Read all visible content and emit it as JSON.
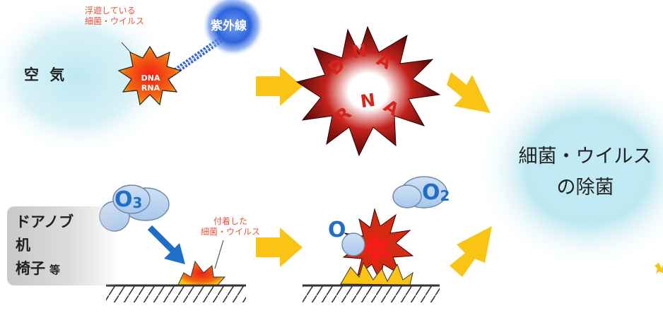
{
  "air": {
    "label": "空 気"
  },
  "floating_bacteria": {
    "line1": "浮遊している",
    "line2": "細菌・ウイルス"
  },
  "uv": {
    "label": "紫外線"
  },
  "germ": {
    "line1": "DNA",
    "line2": "RNA"
  },
  "burst_letters": [
    "D",
    "N",
    "A",
    "R",
    "N",
    "A"
  ],
  "surfaces": {
    "line1": "ドアノブ",
    "line2": "机",
    "line3": "椅子",
    "suffix": "等"
  },
  "ozone": {
    "symbol": "O",
    "sub": "3"
  },
  "attached_bacteria": {
    "line1": "付着した",
    "line2": "細菌・ウイルス"
  },
  "oxygen_atom": {
    "symbol": "O"
  },
  "oxygen_molecule": {
    "symbol": "O",
    "sub": "2"
  },
  "result": {
    "line1": "細菌・ウイルス",
    "line2": "の除菌"
  },
  "colors": {
    "arrow_yellow": "#f9c414",
    "ozone_blue": "#1f6fc8",
    "note_red": "#e8553a",
    "burst_red": "#d8231c"
  }
}
